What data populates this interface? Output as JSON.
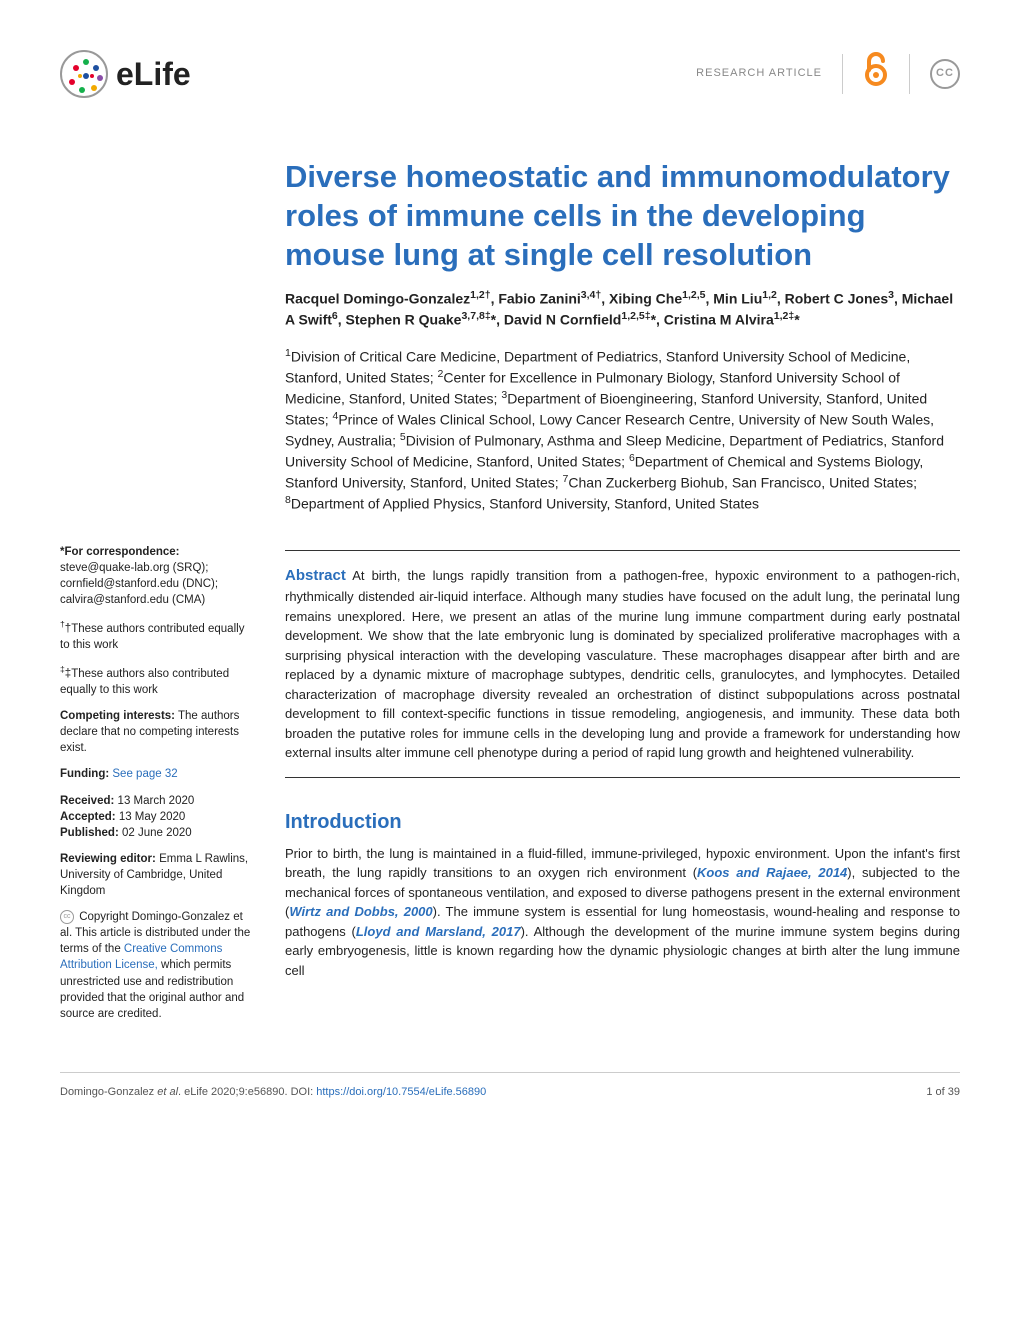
{
  "header": {
    "journal_name": "eLife",
    "article_type": "RESEARCH ARTICLE",
    "oa_symbol": "∂",
    "cc_label": "CC"
  },
  "article": {
    "title": "Diverse homeostatic and immunomodulatory roles of immune cells in the developing mouse lung at single cell resolution",
    "authors_html": "Racquel Domingo-Gonzalez<sup>1,2†</sup>, Fabio Zanini<sup>3,4†</sup>, Xibing Che<sup>1,2,5</sup>, Min Liu<sup>1,2</sup>, Robert C Jones<sup>3</sup>, Michael A Swift<sup>6</sup>, Stephen R Quake<sup>3,7,8‡</sup>*, David N Cornfield<sup>1,2,5‡</sup>*, Cristina M Alvira<sup>1,2‡</sup>*",
    "affiliations_html": "<sup>1</sup>Division of Critical Care Medicine, Department of Pediatrics, Stanford University School of Medicine, Stanford, United States; <sup>2</sup>Center for Excellence in Pulmonary Biology, Stanford University School of Medicine, Stanford, United States; <sup>3</sup>Department of Bioengineering, Stanford University, Stanford, United States; <sup>4</sup>Prince of Wales Clinical School, Lowy Cancer Research Centre, University of New South Wales, Sydney, Australia; <sup>5</sup>Division of Pulmonary, Asthma and Sleep Medicine, Department of Pediatrics, Stanford University School of Medicine, Stanford, United States; <sup>6</sup>Department of Chemical and Systems Biology, Stanford University, Stanford, United States; <sup>7</sup>Chan Zuckerberg Biohub, San Francisco, United States; <sup>8</sup>Department of Applied Physics, Stanford University, Stanford, United States",
    "abstract_label": "Abstract",
    "abstract_text": "At birth, the lungs rapidly transition from a pathogen-free, hypoxic environment to a pathogen-rich, rhythmically distended air-liquid interface. Although many studies have focused on the adult lung, the perinatal lung remains unexplored. Here, we present an atlas of the murine lung immune compartment during early postnatal development. We show that the late embryonic lung is dominated by specialized proliferative macrophages with a surprising physical interaction with the developing vasculature. These macrophages disappear after birth and are replaced by a dynamic mixture of macrophage subtypes, dendritic cells, granulocytes, and lymphocytes. Detailed characterization of macrophage diversity revealed an orchestration of distinct subpopulations across postnatal development to fill context-specific functions in tissue remodeling, angiogenesis, and immunity. These data both broaden the putative roles for immune cells in the developing lung and provide a framework for understanding how external insults alter immune cell phenotype during a period of rapid lung growth and heightened vulnerability.",
    "section_heading": "Introduction",
    "intro_pre1": "Prior to birth, the lung is maintained in a fluid-filled, immune-privileged, hypoxic environment. Upon the infant's first breath, the lung rapidly transitions to an oxygen rich environment (",
    "ref1": "Koos and Rajaee, 2014",
    "intro_mid1": "), subjected to the mechanical forces of spontaneous ventilation, and exposed to diverse pathogens present in the external environment (",
    "ref2": "Wirtz and Dobbs, 2000",
    "intro_mid2": "). The immune system is essential for lung homeostasis, wound-healing and response to pathogens (",
    "ref3": "Lloyd and Marsland, 2017",
    "intro_post": "). Although the development of the murine immune system begins during early embryogenesis, little is known regarding how the dynamic physiologic changes at birth alter the lung immune cell"
  },
  "sidebar": {
    "correspondence_label": "*For correspondence:",
    "emails": [
      "steve@quake-lab.org (SRQ);",
      "cornfield@stanford.edu (DNC);",
      "calvira@stanford.edu (CMA)"
    ],
    "dagger_note": "†These authors contributed equally to this work",
    "ddagger_note": "‡These authors also contributed equally to this work",
    "competing_label": "Competing interests:",
    "competing_text": "The authors declare that no competing interests exist.",
    "funding_label": "Funding:",
    "funding_link": "See page 32",
    "received_label": "Received:",
    "received_date": "13 March 2020",
    "accepted_label": "Accepted:",
    "accepted_date": "13 May 2020",
    "published_label": "Published:",
    "published_date": "02 June 2020",
    "reviewer_label": "Reviewing editor:",
    "reviewer_text": "Emma L Rawlins, University of Cambridge, United Kingdom",
    "copyright_pre": "Copyright Domingo-Gonzalez et al. This article is distributed under the terms of the ",
    "copyright_link": "Creative Commons Attribution License,",
    "copyright_post": " which permits unrestricted use and redistribution provided that the original author and source are credited."
  },
  "footer": {
    "citation_pre": "Domingo-Gonzalez ",
    "citation_etal": "et al",
    "citation_post": ". eLife 2020;9:e56890. ",
    "doi_label": "DOI: ",
    "doi_url": "https://doi.org/10.7554/eLife.56890",
    "page_num": "1 of 39"
  },
  "colors": {
    "primary": "#2a6ebb",
    "orange": "#f68a1f",
    "text": "#222222",
    "muted": "#888888"
  }
}
